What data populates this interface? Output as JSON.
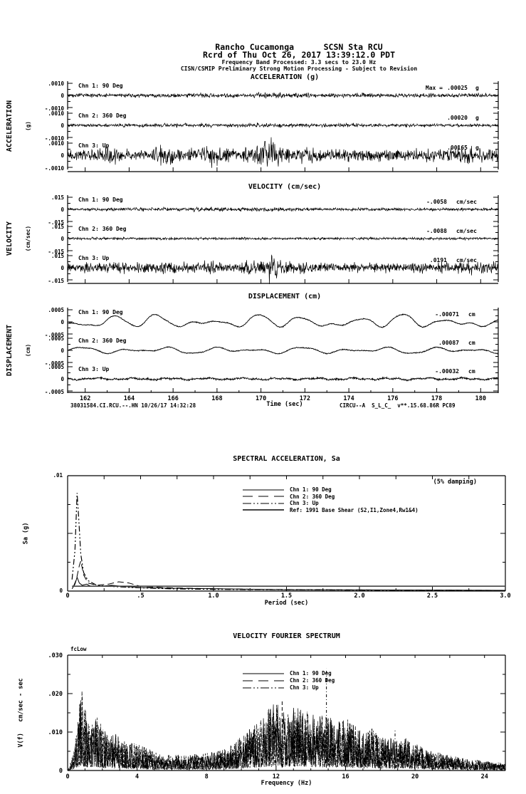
{
  "header": {
    "station_line": "Rancho Cucamonga      SCSN Sta RCU",
    "record_line": "Rcrd of Thu Oct 26, 2017 13:39:12.0 PDT",
    "band_line": "Frequency Band Processed: 3.3 secs to 23.0 Hz",
    "processing_line": "CISN/CSMIP Preliminary Strong Motion Processing - Subject to Revision"
  },
  "footer": {
    "record_id": "38031584.CI.RCU.--.HN 10/26/17 14:32:28",
    "processing_code": "CIRCU--A  S_L_C_  v**.15.68.86R PC89"
  },
  "time_sections": [
    {
      "id": "acceleration",
      "title": "ACCELERATION (g)",
      "side_label": "ACCELERATION",
      "side_unit": "(g)",
      "scale_labels": {
        "top": ".0010",
        "zero": "0",
        "bottom": "-.0010"
      },
      "channels": [
        {
          "label": "Chn 1: 90 Deg",
          "max_prefix": "Max =",
          "max_value": ".00025",
          "unit": "g"
        },
        {
          "label": "Chn 2: 360 Deg",
          "max_value": ".00020",
          "unit": "g"
        },
        {
          "label": "Chn 3: Up",
          "max_value": ".00165",
          "unit": "g"
        }
      ]
    },
    {
      "id": "velocity",
      "title": "VELOCITY (cm/sec)",
      "side_label": "VELOCITY",
      "side_unit": "(cm/sec)",
      "scale_labels": {
        "top": ".015",
        "zero": "0",
        "bottom": "-.015"
      },
      "channels": [
        {
          "label": "Chn 1: 90 Deg",
          "max_value": "-.0058",
          "unit": "cm/sec"
        },
        {
          "label": "Chn 2: 360 Deg",
          "max_value": "-.0088",
          "unit": "cm/sec"
        },
        {
          "label": "Chn 3: Up",
          "max_value": ".0191",
          "unit": "cm/sec"
        }
      ]
    },
    {
      "id": "displacement",
      "title": "DISPLACEMENT (cm)",
      "side_label": "DISPLACEMENT",
      "side_unit": "(cm)",
      "scale_labels": {
        "top": ".0005",
        "zero": "0",
        "bottom": "-.0005"
      },
      "xlabel": "Time (sec)",
      "channels": [
        {
          "label": "Chn 1: 90 Deg",
          "max_value": "-.00071",
          "unit": "cm"
        },
        {
          "label": "Chn 2: 360 Deg",
          "max_value": ".00087",
          "unit": "cm"
        },
        {
          "label": "Chn 3: Up",
          "max_value": "-.00032",
          "unit": "cm"
        }
      ]
    }
  ],
  "sa_section": {
    "title": "SPECTRAL ACCELERATION, Sa",
    "ylabel": "Sa (g)",
    "xlabel": "Period (sec)",
    "damping_note": "(5% damping)",
    "y_top_label": ".01",
    "y_zero_label": "0",
    "legend": [
      {
        "label": "Chn 1: 90 Deg",
        "dash": "",
        "color": "#000000",
        "width": "1"
      },
      {
        "label": "Chn 2: 360 Deg",
        "dash": "14,8",
        "color": "#000000",
        "width": "1"
      },
      {
        "label": "Chn 3: Up",
        "dash": "12,3,2,3,2,3",
        "color": "#000000",
        "width": "1"
      },
      {
        "label": "Ref: 1991 Base Shear (S2,I1,Zone4,Rw1&4)",
        "dash": "",
        "color": "#444444",
        "width": "2"
      }
    ]
  },
  "fourier_section": {
    "title": "VELOCITY FOURIER SPECTRUM",
    "ylabel": "V(f)   cm/sec - sec",
    "xlabel": "Frequency (Hz)",
    "corner_label": "fcLow",
    "legend": [
      {
        "label": "Chn 1: 90 Deg",
        "dash": "",
        "color": "#000000",
        "width": "1"
      },
      {
        "label": "Chn 2: 360 Deg",
        "dash": "14,8",
        "color": "#000000",
        "width": "1"
      },
      {
        "label": "Chn 3: Up",
        "dash": "12,3,2,3,2,3",
        "color": "#000000",
        "width": "1"
      }
    ]
  },
  "chart_data": [
    {
      "id": "acceleration",
      "type": "line",
      "title": "ACCELERATION (g)",
      "xlabel": "Time (sec)",
      "ylabel": "ACCELERATION (g)",
      "x_range": [
        161.2,
        180.8
      ],
      "x_ticks": [
        162,
        164,
        166,
        168,
        170,
        172,
        174,
        176,
        178,
        180
      ],
      "y_limit": 0.001,
      "grid": false,
      "series": [
        {
          "name": "Chn 1: 90 Deg",
          "peak": 0.00025,
          "kind": "noise",
          "envelope": [
            [
              161.2,
              0.16
            ],
            [
              169.5,
              0.18
            ],
            [
              170.3,
              0.3
            ],
            [
              171,
              0.2
            ],
            [
              180.8,
              0.16
            ]
          ]
        },
        {
          "name": "Chn 2: 360 Deg",
          "peak": 0.0002,
          "kind": "noise",
          "envelope": [
            [
              161.2,
              0.13
            ],
            [
              170.3,
              0.18
            ],
            [
              180.8,
              0.13
            ]
          ]
        },
        {
          "name": "Chn 3: Up",
          "peak": 0.00165,
          "kind": "noise",
          "envelope": [
            [
              161.2,
              0.42
            ],
            [
              162.3,
              0.48
            ],
            [
              163.3,
              0.85
            ],
            [
              163.7,
              0.5
            ],
            [
              164.8,
              0.5
            ],
            [
              165.8,
              0.9
            ],
            [
              166.3,
              0.55
            ],
            [
              167.2,
              0.6
            ],
            [
              168,
              0.95
            ],
            [
              168.5,
              0.6
            ],
            [
              169.2,
              0.65
            ],
            [
              169.9,
              0.95
            ],
            [
              170.3,
              1.6
            ],
            [
              170.55,
              1.35
            ],
            [
              170.9,
              0.7
            ],
            [
              171.5,
              0.62
            ],
            [
              172.2,
              0.68
            ],
            [
              173.4,
              0.52
            ],
            [
              174.8,
              0.48
            ],
            [
              176,
              0.55
            ],
            [
              177,
              0.5
            ],
            [
              178.2,
              0.6
            ],
            [
              179.3,
              0.8
            ],
            [
              179.8,
              0.65
            ],
            [
              180.8,
              0.55
            ]
          ]
        }
      ]
    },
    {
      "id": "velocity",
      "type": "line",
      "title": "VELOCITY (cm/sec)",
      "xlabel": "Time (sec)",
      "ylabel": "VELOCITY (cm/sec)",
      "x_range": [
        161.2,
        180.8
      ],
      "x_ticks": [
        162,
        164,
        166,
        168,
        170,
        172,
        174,
        176,
        178,
        180
      ],
      "y_limit": 0.015,
      "grid": false,
      "series": [
        {
          "name": "Chn 1: 90 Deg",
          "peak": -0.0058,
          "kind": "noise",
          "envelope": [
            [
              161.2,
              0.12
            ],
            [
              170.4,
              0.2
            ],
            [
              171.5,
              0.14
            ],
            [
              180.8,
              0.12
            ]
          ]
        },
        {
          "name": "Chn 2: 360 Deg",
          "peak": -0.0088,
          "kind": "noise",
          "envelope": [
            [
              161.2,
              0.11
            ],
            [
              180.8,
              0.11
            ]
          ]
        },
        {
          "name": "Chn 3: Up",
          "peak": 0.0191,
          "kind": "noise",
          "envelope": [
            [
              161.2,
              0.32
            ],
            [
              163.3,
              0.55
            ],
            [
              164,
              0.38
            ],
            [
              165.8,
              0.5
            ],
            [
              166.8,
              0.4
            ],
            [
              168,
              0.55
            ],
            [
              169,
              0.45
            ],
            [
              169.9,
              0.65
            ],
            [
              170.35,
              1.27
            ],
            [
              170.7,
              0.95
            ],
            [
              171.3,
              0.55
            ],
            [
              172.2,
              0.48
            ],
            [
              174,
              0.38
            ],
            [
              176,
              0.42
            ],
            [
              178,
              0.45
            ],
            [
              179.5,
              0.55
            ],
            [
              180.8,
              0.48
            ]
          ]
        }
      ]
    },
    {
      "id": "displacement",
      "type": "line",
      "title": "DISPLACEMENT (cm)",
      "xlabel": "Time (sec)",
      "ylabel": "DISPLACEMENT (cm)",
      "x_range": [
        161.2,
        180.8
      ],
      "x_ticks": [
        162,
        164,
        166,
        168,
        170,
        172,
        174,
        176,
        178,
        180
      ],
      "y_limit": 0.0005,
      "grid": false,
      "series": [
        {
          "name": "Chn 1: 90 Deg",
          "peak": -0.00071,
          "kind": "smooth",
          "noise": 0.05,
          "components": [
            [
              0.45,
              0.3
            ],
            [
              0.62,
              0.22
            ],
            [
              0.17,
              0.14
            ],
            [
              1.1,
              0.06
            ]
          ]
        },
        {
          "name": "Chn 2: 360 Deg",
          "peak": 0.00087,
          "kind": "smooth",
          "noise": 0.05,
          "components": [
            [
              0.5,
              0.16
            ],
            [
              0.3,
              0.12
            ],
            [
              0.9,
              0.06
            ]
          ]
        },
        {
          "name": "Chn 3: Up",
          "peak": -0.00032,
          "kind": "smooth",
          "noise": 0.1,
          "components": [
            [
              0.6,
              0.05
            ],
            [
              1.4,
              0.04
            ]
          ]
        }
      ]
    },
    {
      "id": "sa",
      "type": "line",
      "title": "SPECTRAL ACCELERATION, Sa",
      "xlabel": "Period (sec)",
      "ylabel": "Sa (g)",
      "annotation": "(5% damping)",
      "xlim": [
        0,
        3.0
      ],
      "ylim": [
        0,
        0.01
      ],
      "x_ticks": [
        0,
        0.5,
        1.0,
        1.5,
        2.0,
        2.5,
        3.0
      ],
      "x_tick_labels": [
        "0",
        ".5",
        "1.0",
        "1.5",
        "2.0",
        "2.5",
        "3.0"
      ],
      "x_minor_step": 0.25,
      "legend_position": "upper center",
      "grid": false,
      "series": [
        {
          "name": "Chn 1: 90 Deg",
          "points": [
            [
              0.03,
              0.0002
            ],
            [
              0.05,
              0.0006
            ],
            [
              0.065,
              0.0012
            ],
            [
              0.08,
              0.0007
            ],
            [
              0.1,
              0.0005
            ],
            [
              0.13,
              0.0006
            ],
            [
              0.16,
              0.0004
            ],
            [
              0.22,
              0.0004
            ],
            [
              0.3,
              0.0005
            ],
            [
              0.38,
              0.0004
            ],
            [
              0.5,
              0.0003
            ],
            [
              0.7,
              0.00025
            ],
            [
              1.0,
              0.0002
            ],
            [
              1.5,
              0.00012
            ],
            [
              2.0,
              0.0001
            ],
            [
              2.5,
              8e-05
            ],
            [
              3.0,
              6e-05
            ]
          ]
        },
        {
          "name": "Chn 2: 360 Deg",
          "points": [
            [
              0.04,
              0.0004
            ],
            [
              0.06,
              0.001
            ],
            [
              0.08,
              0.0022
            ],
            [
              0.09,
              0.0026
            ],
            [
              0.11,
              0.0014
            ],
            [
              0.14,
              0.0007
            ],
            [
              0.2,
              0.0005
            ],
            [
              0.28,
              0.0006
            ],
            [
              0.35,
              0.0008
            ],
            [
              0.42,
              0.0007
            ],
            [
              0.5,
              0.0004
            ],
            [
              0.65,
              0.0003
            ],
            [
              0.9,
              0.00022
            ],
            [
              1.3,
              0.00015
            ],
            [
              2.0,
              0.0001
            ],
            [
              3.0,
              6e-05
            ]
          ]
        },
        {
          "name": "Chn 3: Up",
          "points": [
            [
              0.03,
              0.001
            ],
            [
              0.05,
              0.0035
            ],
            [
              0.065,
              0.0085
            ],
            [
              0.075,
              0.0065
            ],
            [
              0.09,
              0.0032
            ],
            [
              0.11,
              0.0016
            ],
            [
              0.14,
              0.0009
            ],
            [
              0.2,
              0.0005
            ],
            [
              0.3,
              0.0004
            ],
            [
              0.45,
              0.0003
            ],
            [
              0.7,
              0.0002
            ],
            [
              1.0,
              0.00015
            ],
            [
              2.0,
              8e-05
            ],
            [
              3.0,
              5e-05
            ]
          ]
        },
        {
          "name": "Ref: 1991 Base Shear (S2,I1,Zone4,Rw1&4)",
          "points": [
            [
              0.03,
              0.00042
            ],
            [
              3.0,
              0.00042
            ]
          ]
        }
      ]
    },
    {
      "id": "fourier",
      "type": "line",
      "title": "VELOCITY FOURIER SPECTRUM",
      "xlabel": "Frequency (Hz)",
      "ylabel": "V(f) cm/sec - sec",
      "xlim": [
        0,
        25.2
      ],
      "ylim": [
        0,
        0.03
      ],
      "x_ticks": [
        0,
        4,
        8,
        12,
        16,
        20,
        24
      ],
      "y_ticks": [
        0,
        0.01,
        0.02,
        0.03
      ],
      "y_tick_labels": [
        "0",
        ".010",
        ".020",
        ".030"
      ],
      "corner_label": "fcLow",
      "grid": false,
      "series": [
        "Chn 1: 90 Deg",
        "Chn 2: 360 Deg",
        "Chn 3: Up"
      ],
      "envelope": [
        [
          0,
          0.0005
        ],
        [
          0.3,
          0.004
        ],
        [
          0.6,
          0.014
        ],
        [
          0.8,
          0.022
        ],
        [
          0.95,
          0.017
        ],
        [
          1.2,
          0.013
        ],
        [
          1.6,
          0.016
        ],
        [
          2,
          0.011
        ],
        [
          2.4,
          0.009
        ],
        [
          2.8,
          0.0095
        ],
        [
          3.2,
          0.008
        ],
        [
          3.6,
          0.007
        ],
        [
          4,
          0.0075
        ],
        [
          4.5,
          0.006
        ],
        [
          5,
          0.005
        ],
        [
          5.5,
          0.0045
        ],
        [
          6,
          0.0042
        ],
        [
          7,
          0.004
        ],
        [
          8,
          0.0045
        ],
        [
          8.5,
          0.005
        ],
        [
          9,
          0.0055
        ],
        [
          9.5,
          0.007
        ],
        [
          10,
          0.009
        ],
        [
          10.5,
          0.011
        ],
        [
          11,
          0.013
        ],
        [
          11.5,
          0.016
        ],
        [
          12,
          0.018
        ],
        [
          12.5,
          0.015
        ],
        [
          13,
          0.017
        ],
        [
          13.5,
          0.016
        ],
        [
          14,
          0.015
        ],
        [
          14.5,
          0.0145
        ],
        [
          15,
          0.014
        ],
        [
          15.5,
          0.013
        ],
        [
          16,
          0.0145
        ],
        [
          16.5,
          0.012
        ],
        [
          17,
          0.01
        ],
        [
          17.5,
          0.011
        ],
        [
          18,
          0.009
        ],
        [
          18.5,
          0.0085
        ],
        [
          19,
          0.008
        ],
        [
          19.5,
          0.0085
        ],
        [
          20,
          0.007
        ],
        [
          20.5,
          0.006
        ],
        [
          21,
          0.005
        ],
        [
          21.5,
          0.0045
        ],
        [
          22,
          0.004
        ],
        [
          22.5,
          0.0035
        ],
        [
          23,
          0.003
        ],
        [
          23.5,
          0.0028
        ],
        [
          24,
          0.0025
        ],
        [
          24.6,
          0.0022
        ],
        [
          25.2,
          0.002
        ]
      ],
      "spikes": {
        "chn2": [
          [
            12.35,
            0.0185
          ]
        ],
        "chn3": [
          [
            14.9,
            0.0265
          ],
          [
            18.85,
            0.0105
          ]
        ]
      }
    }
  ]
}
